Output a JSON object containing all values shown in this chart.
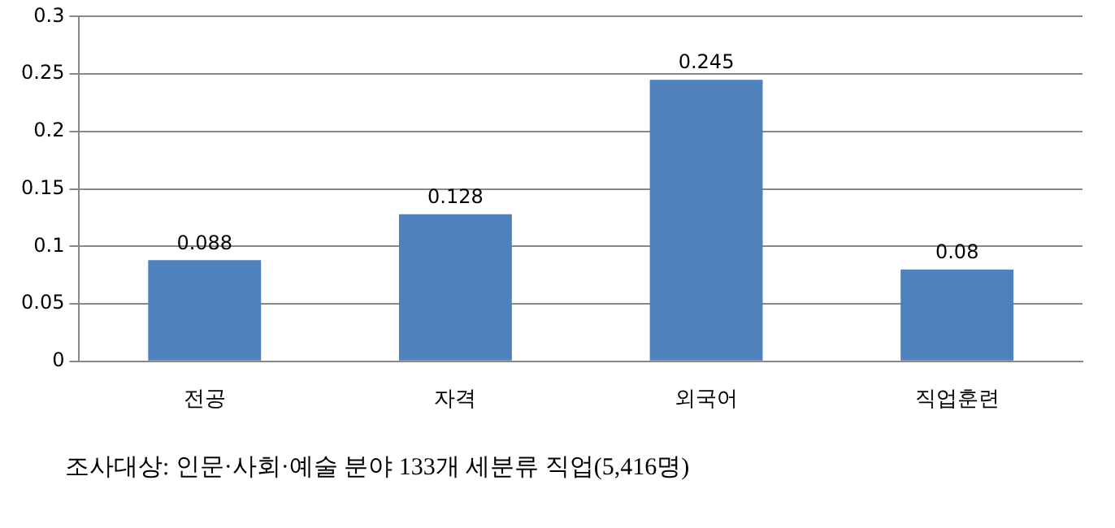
{
  "chart_data": {
    "type": "bar",
    "categories": [
      "전공",
      "자격",
      "외국어",
      "직업훈련"
    ],
    "values": [
      0.088,
      0.128,
      0.245,
      0.08
    ],
    "color": "#4f81bd",
    "ylim": [
      0,
      0.3
    ],
    "yticks": [
      0,
      0.05,
      0.1,
      0.15,
      0.2,
      0.25,
      0.3
    ],
    "grid": "y",
    "data_labels": true,
    "legend": false,
    "annotations": [
      "조사대상: 인문·사회·예술 분야 133개 세분류 직업(5,416명)"
    ]
  }
}
